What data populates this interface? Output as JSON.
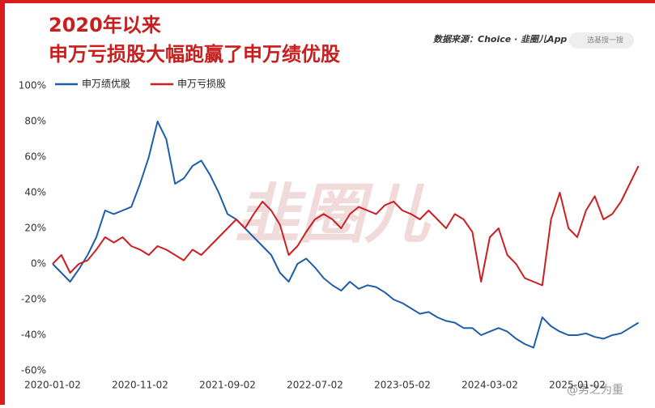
{
  "header": {
    "title_lines": [
      "2020年以来",
      "申万亏损股大幅跑赢了申万绩优股"
    ],
    "source": "数据来源：Choice · 韭圈儿App",
    "search": "选基搜一搜"
  },
  "watermarks": [
    "韭圈儿",
    "@男之为重"
  ],
  "chart_data": {
    "type": "line",
    "categories": [
      "2020-01-02",
      null,
      null,
      null,
      null,
      null,
      null,
      null,
      null,
      null,
      "2020-11-02",
      null,
      null,
      null,
      null,
      null,
      null,
      null,
      null,
      null,
      "2021-09-02",
      null,
      null,
      null,
      null,
      null,
      null,
      null,
      null,
      null,
      "2022-07-02",
      null,
      null,
      null,
      null,
      null,
      null,
      null,
      null,
      null,
      "2023-05-02",
      null,
      null,
      null,
      null,
      null,
      null,
      null,
      null,
      null,
      "2024-03-02",
      null,
      null,
      null,
      null,
      null,
      null,
      null,
      null,
      null,
      "2025-01-02",
      null,
      null,
      null,
      null,
      null,
      null,
      null
    ],
    "series": [
      {
        "name": "申万绩优股",
        "color": "#1f5fa8",
        "values": [
          0,
          -5,
          -10,
          -3,
          5,
          15,
          30,
          28,
          30,
          32,
          45,
          60,
          80,
          70,
          45,
          48,
          55,
          58,
          50,
          40,
          28,
          25,
          20,
          15,
          10,
          5,
          -5,
          -10,
          0,
          3,
          -2,
          -8,
          -12,
          -15,
          -10,
          -14,
          -12,
          -13,
          -16,
          -20,
          -22,
          -25,
          -28,
          -27,
          -30,
          -32,
          -33,
          -36,
          -36,
          -40,
          -38,
          -36,
          -38,
          -42,
          -45,
          -47,
          -30,
          -35,
          -38,
          -40,
          -40,
          -39,
          -41,
          -42,
          -40,
          -39,
          -36,
          -33
        ]
      },
      {
        "name": "申万亏损股",
        "color": "#cc1f24",
        "values": [
          0,
          5,
          -5,
          0,
          2,
          8,
          15,
          12,
          15,
          10,
          8,
          5,
          10,
          8,
          5,
          2,
          8,
          5,
          10,
          15,
          20,
          25,
          20,
          28,
          35,
          30,
          22,
          5,
          10,
          18,
          25,
          28,
          25,
          20,
          28,
          32,
          30,
          28,
          33,
          35,
          30,
          28,
          25,
          30,
          25,
          20,
          28,
          25,
          18,
          -10,
          15,
          20,
          5,
          0,
          -8,
          -10,
          -12,
          25,
          40,
          20,
          15,
          30,
          38,
          25,
          28,
          35,
          45,
          55
        ]
      }
    ],
    "ylim": [
      -60,
      100
    ],
    "yticks": [
      {
        "value": -60,
        "label": "-60%"
      },
      {
        "value": -40,
        "label": "-40%"
      },
      {
        "value": -20,
        "label": "-20%"
      },
      {
        "value": 0,
        "label": "0%"
      },
      {
        "value": 20,
        "label": "20%"
      },
      {
        "value": 40,
        "label": "40%"
      },
      {
        "value": 60,
        "label": "60%"
      },
      {
        "value": 80,
        "label": "80%"
      },
      {
        "value": 100,
        "label": "100%"
      }
    ],
    "legend": "top-left"
  }
}
